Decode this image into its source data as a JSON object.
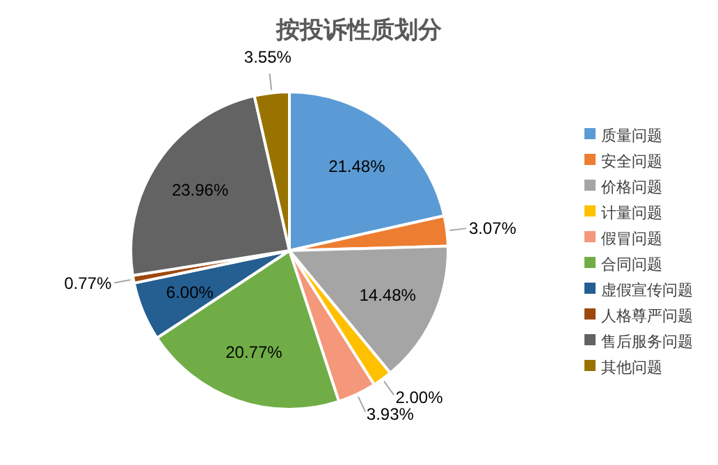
{
  "chart_data": {
    "type": "pie",
    "title": "按投诉性质划分",
    "categories": [
      "质量问题",
      "安全问题",
      "价格问题",
      "计量问题",
      "假冒问题",
      "合同问题",
      "虚假宣传问题",
      "人格尊严问题",
      "售后服务问题",
      "其他问题"
    ],
    "values": [
      21.48,
      3.07,
      14.48,
      2.0,
      3.93,
      20.77,
      6.0,
      0.77,
      23.96,
      3.55
    ],
    "colors": [
      "#5b9bd5",
      "#ed7d31",
      "#a5a5a5",
      "#ffc000",
      "#f4977a",
      "#70ad47",
      "#255e91",
      "#9e480e",
      "#636363",
      "#997300"
    ],
    "value_labels": [
      "21.48%",
      "3.07%",
      "14.48%",
      "2.00%",
      "3.93%",
      "20.77%",
      "6.00%",
      "0.77%",
      "23.96%",
      "3.55%"
    ],
    "legend": "right"
  }
}
